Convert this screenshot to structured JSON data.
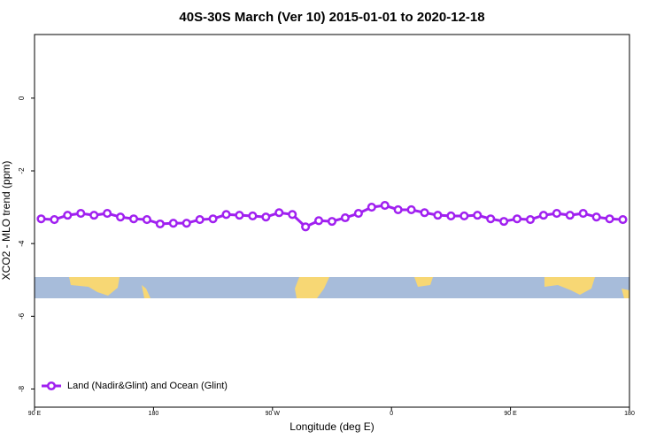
{
  "chart_data": {
    "type": "line",
    "title": "40S-30S March (Ver 10)   2015-01-01 to 2020-12-18",
    "x_label": "Longitude (deg E)",
    "y_label": "XCO2 - MLO trend (ppm)",
    "x": [
      95,
      105,
      115,
      125,
      135,
      145,
      155,
      165,
      175,
      185,
      195,
      205,
      215,
      225,
      235,
      245,
      255,
      265,
      275,
      285,
      295,
      305,
      315,
      325,
      335,
      345,
      355,
      365,
      375,
      385,
      395,
      405,
      415,
      425,
      435,
      445,
      455,
      465,
      475,
      485,
      495,
      505,
      515,
      525,
      535
    ],
    "series": [
      {
        "name": "Land (Nadir&Glint) and Ocean (Glint)",
        "color": "#a020f0",
        "values": [
          -3.32,
          -3.34,
          -3.22,
          -3.17,
          -3.22,
          -3.17,
          -3.27,
          -3.32,
          -3.34,
          -3.46,
          -3.44,
          -3.44,
          -3.34,
          -3.32,
          -3.2,
          -3.22,
          -3.24,
          -3.27,
          -3.15,
          -3.2,
          -3.54,
          -3.37,
          -3.39,
          -3.29,
          -3.17,
          -3.0,
          -2.95,
          -3.07,
          -3.07,
          -3.15,
          -3.22,
          -3.24,
          -3.24,
          -3.22,
          -3.32,
          -3.39,
          -3.32,
          -3.34,
          -3.22,
          -3.17,
          -3.22,
          -3.17,
          -3.27,
          -3.32,
          -3.34
        ]
      }
    ],
    "xlim": [
      90,
      540
    ],
    "xticks": [
      {
        "value": 90,
        "label": "90 E"
      },
      {
        "value": 180,
        "label": "180"
      },
      {
        "value": 270,
        "label": "90 W"
      },
      {
        "value": 360,
        "label": "0"
      },
      {
        "value": 450,
        "label": "90 E"
      },
      {
        "value": 540,
        "label": "180"
      }
    ],
    "ylim": [
      -8.5,
      1.75
    ],
    "yticks": [
      0,
      -2,
      -4,
      -6,
      -8
    ],
    "legend": "bottomleft"
  }
}
